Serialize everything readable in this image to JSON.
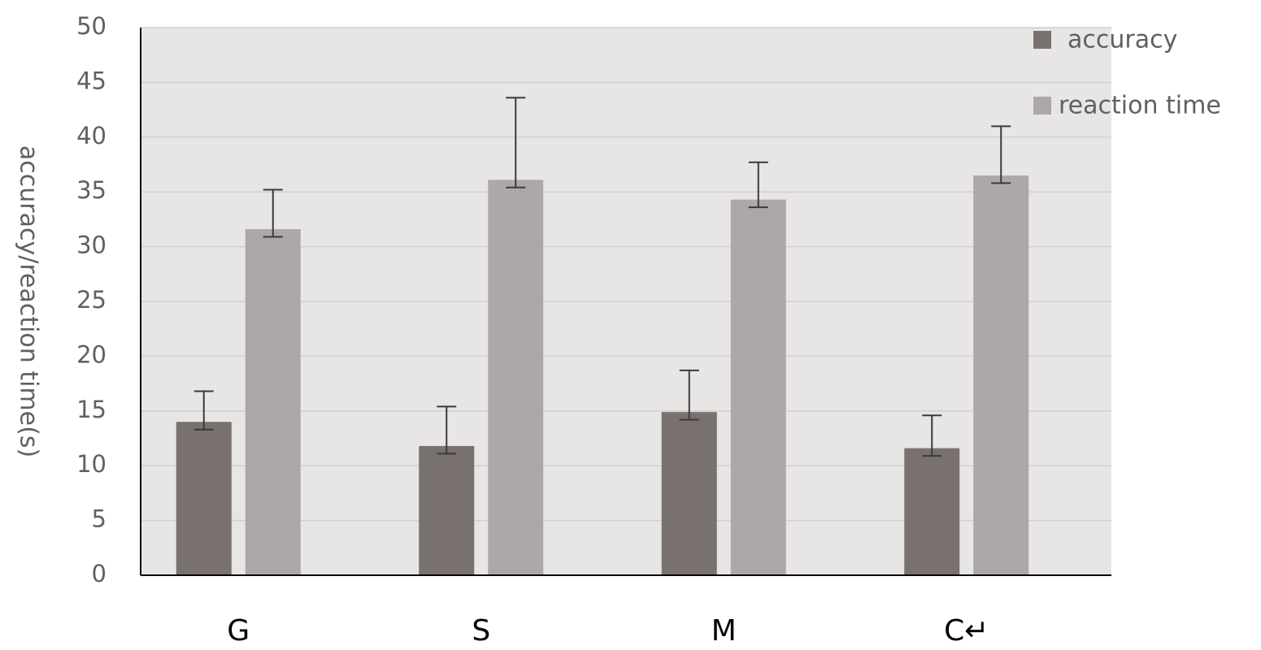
{
  "chart_data": {
    "type": "bar",
    "categories": [
      "G",
      "S",
      "M",
      "C↵"
    ],
    "series": [
      {
        "name": "accuracy",
        "color": "#787170",
        "values": [
          14.0,
          11.8,
          14.9,
          11.6
        ],
        "errors": [
          2.8,
          3.6,
          3.8,
          3.0
        ]
      },
      {
        "name": "reaction time",
        "color": "#ada8a7",
        "values": [
          31.6,
          36.1,
          34.3,
          36.5
        ],
        "errors": [
          3.6,
          7.5,
          3.4,
          4.5
        ]
      }
    ],
    "title": "",
    "xlabel": "",
    "ylabel": "accuracy/reaction time(s)",
    "ylim": [
      0,
      50
    ],
    "yticks": [
      0,
      5,
      10,
      15,
      20,
      25,
      30,
      35,
      40,
      45,
      50
    ],
    "grid": true,
    "legend": "top-right",
    "plot_background": "#e8e5e5"
  }
}
